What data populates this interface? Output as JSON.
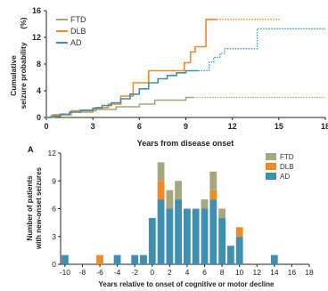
{
  "colors": {
    "FTD": "#a7a67c",
    "DLB": "#f08a24",
    "AD": "#3f8fb0"
  },
  "chart_data": [
    {
      "type": "line",
      "ylabel_line1": "Cumulative",
      "ylabel_line2": "seizure probability",
      "ylabel_unit": "(%)",
      "xlabel": "Years from disease onset",
      "xlim": [
        0,
        18
      ],
      "ylim": [
        0,
        16
      ],
      "x_ticks": [
        "0",
        "3",
        "6",
        "9",
        "12",
        "15",
        "18"
      ],
      "y_ticks": [
        "0",
        "4",
        "8",
        "12",
        "16"
      ],
      "legend": "top-left",
      "series": [
        {
          "name": "FTD",
          "solid": [
            [
              0,
              0
            ],
            [
              0.5,
              0
            ],
            [
              0.5,
              0.4
            ],
            [
              1.5,
              0.4
            ],
            [
              1.5,
              0.8
            ],
            [
              3,
              0.8
            ],
            [
              3,
              1.2
            ],
            [
              4.5,
              1.2
            ],
            [
              4.5,
              1.6
            ],
            [
              6,
              1.6
            ],
            [
              6,
              2.0
            ],
            [
              7,
              2.0
            ],
            [
              7,
              2.6
            ],
            [
              9,
              2.6
            ],
            [
              9,
              3.0
            ],
            [
              9.5,
              3.0
            ]
          ],
          "dotted": [
            [
              9.5,
              3.0
            ],
            [
              18,
              3.0
            ]
          ]
        },
        {
          "name": "DLB",
          "solid": [
            [
              0,
              0
            ],
            [
              0.4,
              0
            ],
            [
              0.4,
              0.4
            ],
            [
              1.6,
              0.4
            ],
            [
              1.6,
              1.0
            ],
            [
              3.2,
              1.0
            ],
            [
              3.2,
              1.5
            ],
            [
              4.0,
              1.5
            ],
            [
              4.0,
              2.0
            ],
            [
              4.8,
              2.0
            ],
            [
              4.8,
              3.2
            ],
            [
              5.6,
              3.2
            ],
            [
              5.6,
              5.2
            ],
            [
              6.6,
              5.2
            ],
            [
              6.6,
              7.0
            ],
            [
              8.9,
              7.0
            ],
            [
              8.9,
              8.2
            ],
            [
              9.3,
              8.2
            ],
            [
              9.3,
              9.8
            ],
            [
              9.6,
              9.8
            ],
            [
              9.6,
              10.6
            ],
            [
              10.3,
              10.6
            ],
            [
              10.3,
              14.7
            ],
            [
              11.0,
              14.7
            ]
          ],
          "dotted": [
            [
              11.0,
              14.7
            ],
            [
              15.1,
              14.7
            ]
          ]
        },
        {
          "name": "AD",
          "solid": [
            [
              0,
              0
            ],
            [
              0.3,
              0
            ],
            [
              0.3,
              0.2
            ],
            [
              0.9,
              0.2
            ],
            [
              0.9,
              0.5
            ],
            [
              1.5,
              0.5
            ],
            [
              1.5,
              0.8
            ],
            [
              2.2,
              0.8
            ],
            [
              2.2,
              1.1
            ],
            [
              3.0,
              1.1
            ],
            [
              3.0,
              1.4
            ],
            [
              3.6,
              1.4
            ],
            [
              3.6,
              1.8
            ],
            [
              4.2,
              1.8
            ],
            [
              4.2,
              2.2
            ],
            [
              4.8,
              2.2
            ],
            [
              4.8,
              2.8
            ],
            [
              5.4,
              2.8
            ],
            [
              5.4,
              3.5
            ],
            [
              6.0,
              3.5
            ],
            [
              6.0,
              4.3
            ],
            [
              6.6,
              4.3
            ],
            [
              6.6,
              5.2
            ],
            [
              7.2,
              5.2
            ],
            [
              7.2,
              5.8
            ],
            [
              7.8,
              5.8
            ],
            [
              7.8,
              6.3
            ],
            [
              8.4,
              6.3
            ],
            [
              8.4,
              6.7
            ],
            [
              9.0,
              6.7
            ],
            [
              9.0,
              7.0
            ],
            [
              9.8,
              7.0
            ]
          ],
          "dotted": [
            [
              9.8,
              7.0
            ],
            [
              10.5,
              7.0
            ],
            [
              10.5,
              8.3
            ],
            [
              10.8,
              8.3
            ],
            [
              10.8,
              9.0
            ],
            [
              11.2,
              9.0
            ],
            [
              11.2,
              9.6
            ],
            [
              11.5,
              9.6
            ],
            [
              11.5,
              10.3
            ],
            [
              13.6,
              10.3
            ],
            [
              13.6,
              13.3
            ],
            [
              18,
              13.3
            ]
          ]
        }
      ]
    },
    {
      "type": "bar",
      "panel_label": "A",
      "stacked": true,
      "ylabel_line1": "Number of patients",
      "ylabel_line2": "with new-onset seizures",
      "xlabel": "Years relative to onset of cognitive or motor decline",
      "xlim": [
        -10.5,
        18
      ],
      "ylim": [
        0,
        12
      ],
      "x_ticks": [
        "-10",
        "-8",
        "-6",
        "-4",
        "-2",
        "0",
        "2",
        "4",
        "6",
        "8",
        "10",
        "12",
        "14",
        "16",
        "18"
      ],
      "y_ticks": [
        "0",
        "3",
        "6",
        "9",
        "12"
      ],
      "legend": "top-right",
      "categories": [
        -10,
        -6,
        -4,
        -2,
        -1,
        0,
        1,
        2,
        3,
        4,
        5,
        6,
        7,
        8,
        9,
        10,
        14
      ],
      "series": [
        {
          "name": "AD",
          "values": [
            1,
            0,
            1,
            1,
            1,
            5,
            7,
            6,
            7,
            6,
            6,
            6,
            7,
            5,
            2,
            3,
            1
          ]
        },
        {
          "name": "DLB",
          "values": [
            0,
            1,
            0,
            0,
            0,
            0,
            2,
            0,
            0,
            0,
            0,
            0,
            1,
            0,
            0,
            1,
            0
          ]
        },
        {
          "name": "FTD",
          "values": [
            0,
            0,
            0,
            0,
            0,
            0,
            2,
            2,
            2,
            0,
            0,
            1,
            2,
            1,
            0,
            0,
            0
          ]
        }
      ]
    }
  ]
}
